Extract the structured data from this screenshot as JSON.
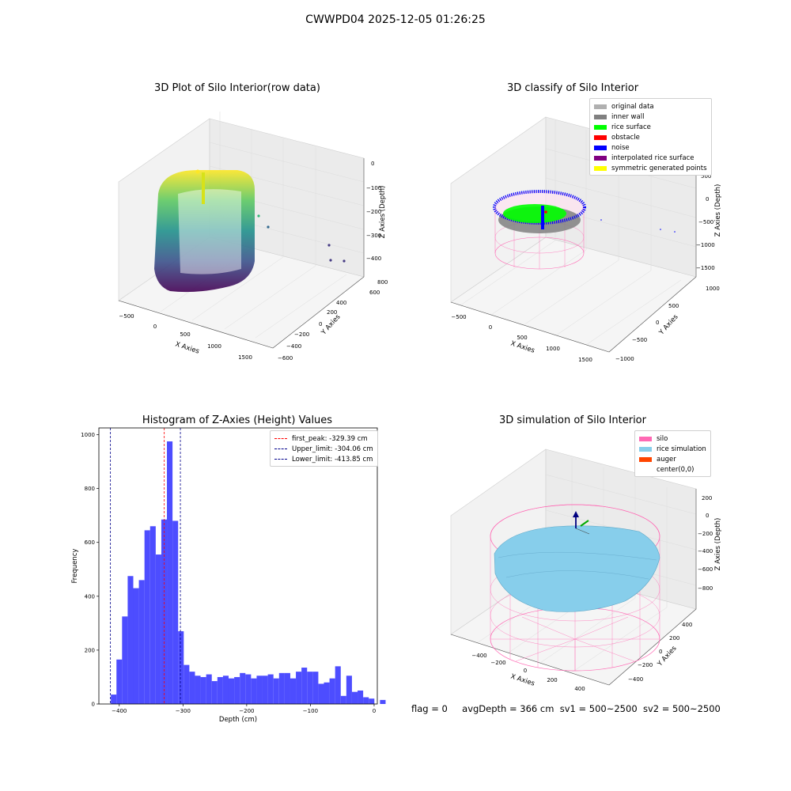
{
  "suptitle": "CWWPD04 2025-12-05 01:26:25",
  "panels": {
    "raw": {
      "title": "3D Plot of Silo Interior(row data)",
      "xlabel": "X Axies",
      "ylabel": "Y Axies",
      "zlabel": "Z Axies (Depth)",
      "xticks": [
        "−500",
        "0",
        "500",
        "1000",
        "1500"
      ],
      "yticks": [
        "800",
        "600",
        "400",
        "200",
        "0",
        "−200",
        "−400",
        "−600"
      ],
      "zticks": [
        "0",
        "−100",
        "−200",
        "−300",
        "−400"
      ]
    },
    "classify": {
      "title": "3D classify of Silo Interior",
      "xlabel": "X Axies",
      "ylabel": "Y Axies",
      "zlabel": "Z Axies (Depth)",
      "xticks": [
        "−500",
        "0",
        "500",
        "1000",
        "1500"
      ],
      "yticks": [
        "1000",
        "500",
        "0",
        "−500",
        "−1000"
      ],
      "zticks": [
        "500",
        "0",
        "−500",
        "−1000",
        "−1500"
      ],
      "legend": [
        {
          "label": "original data",
          "color": "#b0b0b0"
        },
        {
          "label": "inner wall",
          "color": "#808080"
        },
        {
          "label": "rice surface",
          "color": "#00ff00"
        },
        {
          "label": "obstacle",
          "color": "#ff0000"
        },
        {
          "label": "noise",
          "color": "#0000ff"
        },
        {
          "label": "interpolated rice surface",
          "color": "#800080"
        },
        {
          "label": "symmetric generated points",
          "color": "#ffff00"
        }
      ]
    },
    "simulation": {
      "title": "3D simulation of Silo Interior",
      "xlabel": "X Axies",
      "ylabel": "Y Axies",
      "zlabel": "Z Axies (Depth)",
      "xticks": [
        "−400",
        "−200",
        "0",
        "200",
        "400"
      ],
      "yticks": [
        "400",
        "200",
        "0",
        "−200",
        "−400"
      ],
      "zticks": [
        "200",
        "0",
        "−200",
        "−400",
        "−600",
        "−800"
      ],
      "legend": [
        {
          "label": "silo",
          "color": "#ff69b4"
        },
        {
          "label": "rice simulation",
          "color": "#87ceeb"
        },
        {
          "label": "auger",
          "color": "#ff4500"
        },
        {
          "label": "center(0,0)",
          "color": "#ffffff"
        }
      ]
    }
  },
  "chart_data": {
    "type": "bar",
    "title": "Histogram of Z-Axies (Height) Values",
    "xlabel": "Depth (cm)",
    "ylabel": "Frequency",
    "xlim": [
      -432,
      5
    ],
    "ylim": [
      0,
      1025
    ],
    "xticks": [
      -400,
      -300,
      -200,
      -100,
      0
    ],
    "yticks": [
      0,
      200,
      400,
      600,
      800,
      1000
    ],
    "bin_start": -422,
    "bin_width": 8.8,
    "values": [
      0,
      35,
      165,
      325,
      475,
      430,
      460,
      645,
      660,
      555,
      685,
      975,
      680,
      270,
      145,
      120,
      105,
      100,
      110,
      85,
      100,
      105,
      95,
      100,
      115,
      110,
      95,
      105,
      105,
      110,
      95,
      115,
      115,
      95,
      120,
      135,
      120,
      120,
      75,
      80,
      95,
      140,
      30,
      105,
      45,
      50,
      25,
      20,
      0,
      15
    ],
    "bar_color": "#4d4dff",
    "reference_lines": [
      {
        "label": "first_peak: -329.39 cm",
        "x": -329.39,
        "color": "#ff0000"
      },
      {
        "label": "Upper_limit: -304.06 cm",
        "x": -304.06,
        "color": "#00008b"
      },
      {
        "label": "Lower_limit: -413.85 cm",
        "x": -413.85,
        "color": "#00008b"
      }
    ],
    "legend_position": "upper right"
  },
  "status": {
    "flag": "flag = 0",
    "avg_depth": "avgDepth = 366 cm",
    "sv1": "sv1 = 500~2500",
    "sv2": "sv2 = 500~2500"
  }
}
